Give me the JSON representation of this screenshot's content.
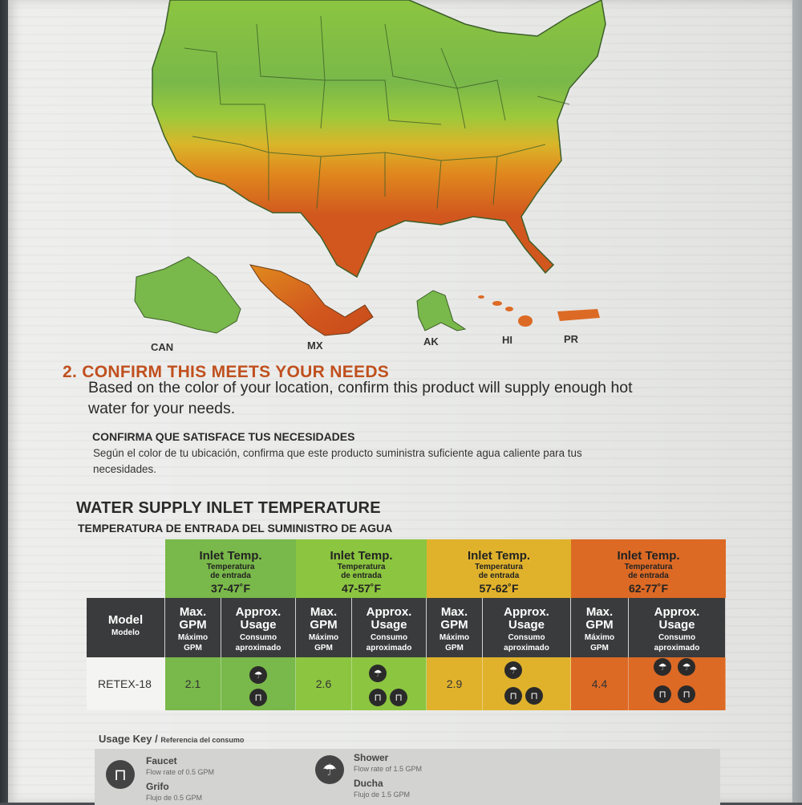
{
  "map": {
    "labels": {
      "can": "CAN",
      "mx": "MX",
      "ak": "AK",
      "hi": "HI",
      "pr": "PR"
    },
    "colors": {
      "green_dark": "#7ab648",
      "green": "#9cc93c",
      "yellow": "#d9b62a",
      "orange": "#e08a1e",
      "red_orange": "#d1571e"
    }
  },
  "section": {
    "heading": "2. CONFIRM THIS MEETS YOUR NEEDS",
    "body_en": "Based on the color of your location, confirm this product will supply enough hot water for your needs.",
    "heading_es": "CONFIRMA QUE SATISFACE TUS NECESIDADES",
    "body_es": "Según el color de tu ubicación, confirma que este producto suministra suficiente agua caliente para tus necesidades."
  },
  "table": {
    "title": "WATER SUPPLY INLET TEMPERATURE",
    "subtitle": "TEMPERATURA DE ENTRADA DEL SUMINISTRO DE AGUA",
    "bands": [
      {
        "label": "Inlet Temp.",
        "label_es_1": "Temperatura",
        "label_es_2": "de entrada",
        "range": "37-47˚F",
        "color": "#79b84a"
      },
      {
        "label": "Inlet Temp.",
        "label_es_1": "Temperatura",
        "label_es_2": "de entrada",
        "range": "47-57˚F",
        "color": "#8cc540"
      },
      {
        "label": "Inlet Temp.",
        "label_es_1": "Temperatura",
        "label_es_2": "de entrada",
        "range": "57-62˚F",
        "color": "#e0b22c"
      },
      {
        "label": "Inlet Temp.",
        "label_es_1": "Temperatura",
        "label_es_2": "de entrada",
        "range": "62-77˚F",
        "color": "#dc6a25"
      }
    ],
    "headers": {
      "model": "Model",
      "model_es": "Modelo",
      "max_gpm_1": "Max.",
      "max_gpm_2": "GPM",
      "max_gpm_es_1": "Máximo",
      "max_gpm_es_2": "GPM",
      "usage_1": "Approx.",
      "usage_2": "Usage",
      "usage_es_1": "Consumo",
      "usage_es_2": "aproximado"
    },
    "row": {
      "model": "RETEX-18",
      "gpm": [
        "2.1",
        "2.6",
        "2.9",
        "4.4"
      ],
      "usage": [
        {
          "showers": 1,
          "faucets": 1
        },
        {
          "showers": 1,
          "faucets": 2
        },
        {
          "showers": 1,
          "faucets": 2
        },
        {
          "showers": 2,
          "faucets": 2
        }
      ]
    }
  },
  "usage_key": {
    "title": "Usage Key /",
    "title_es": "Referencia del consumo",
    "faucet": {
      "name": "Faucet",
      "desc": "Flow rate of 0.5 GPM",
      "name_es": "Grifo",
      "desc_es": "Flujo de 0.5 GPM"
    },
    "shower": {
      "name": "Shower",
      "desc": "Flow rate of 1.5 GPM",
      "name_es": "Ducha",
      "desc_es": "Flujo de 1.5 GPM"
    }
  }
}
